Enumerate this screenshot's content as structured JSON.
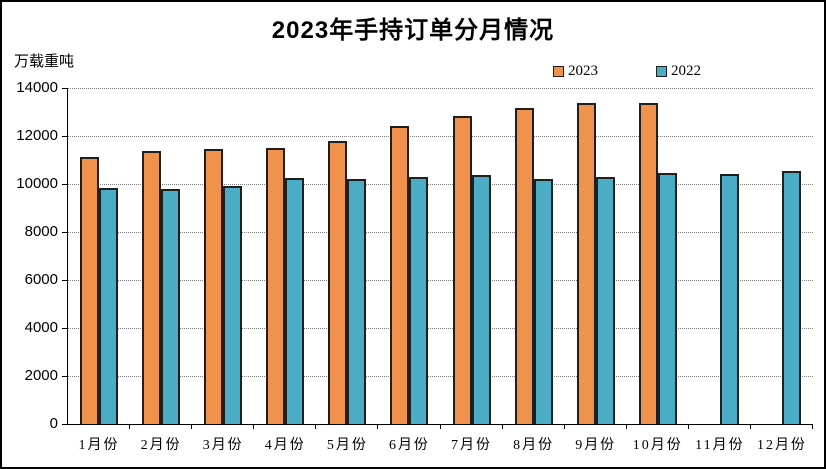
{
  "chart_data": {
    "type": "bar",
    "title": "2023年手持订单分月情况",
    "unit_label": "万载重吨",
    "categories": [
      "1月份",
      "2月份",
      "3月份",
      "4月份",
      "5月份",
      "6月份",
      "7月份",
      "8月份",
      "9月份",
      "10月份",
      "11月份",
      "12月份"
    ],
    "series": [
      {
        "name": "2023",
        "color": "#F0924B",
        "border_color": "#1F1F1F",
        "values": [
          11110,
          11370,
          11450,
          11520,
          11780,
          12400,
          12820,
          13170,
          13390,
          13390,
          null,
          null
        ]
      },
      {
        "name": "2022",
        "color": "#4BACC6",
        "border_color": "#1F1F1F",
        "values": [
          9850,
          9800,
          9920,
          10250,
          10210,
          10280,
          10370,
          10220,
          10300,
          10470,
          10400,
          10560
        ]
      }
    ],
    "xlabel": "",
    "ylabel": "",
    "ylim": [
      0,
      14000
    ],
    "y_ticks": [
      0,
      2000,
      4000,
      6000,
      8000,
      10000,
      12000,
      14000
    ],
    "grid": "horizontal-dotted",
    "legend_position": "top-right-above-plot"
  }
}
